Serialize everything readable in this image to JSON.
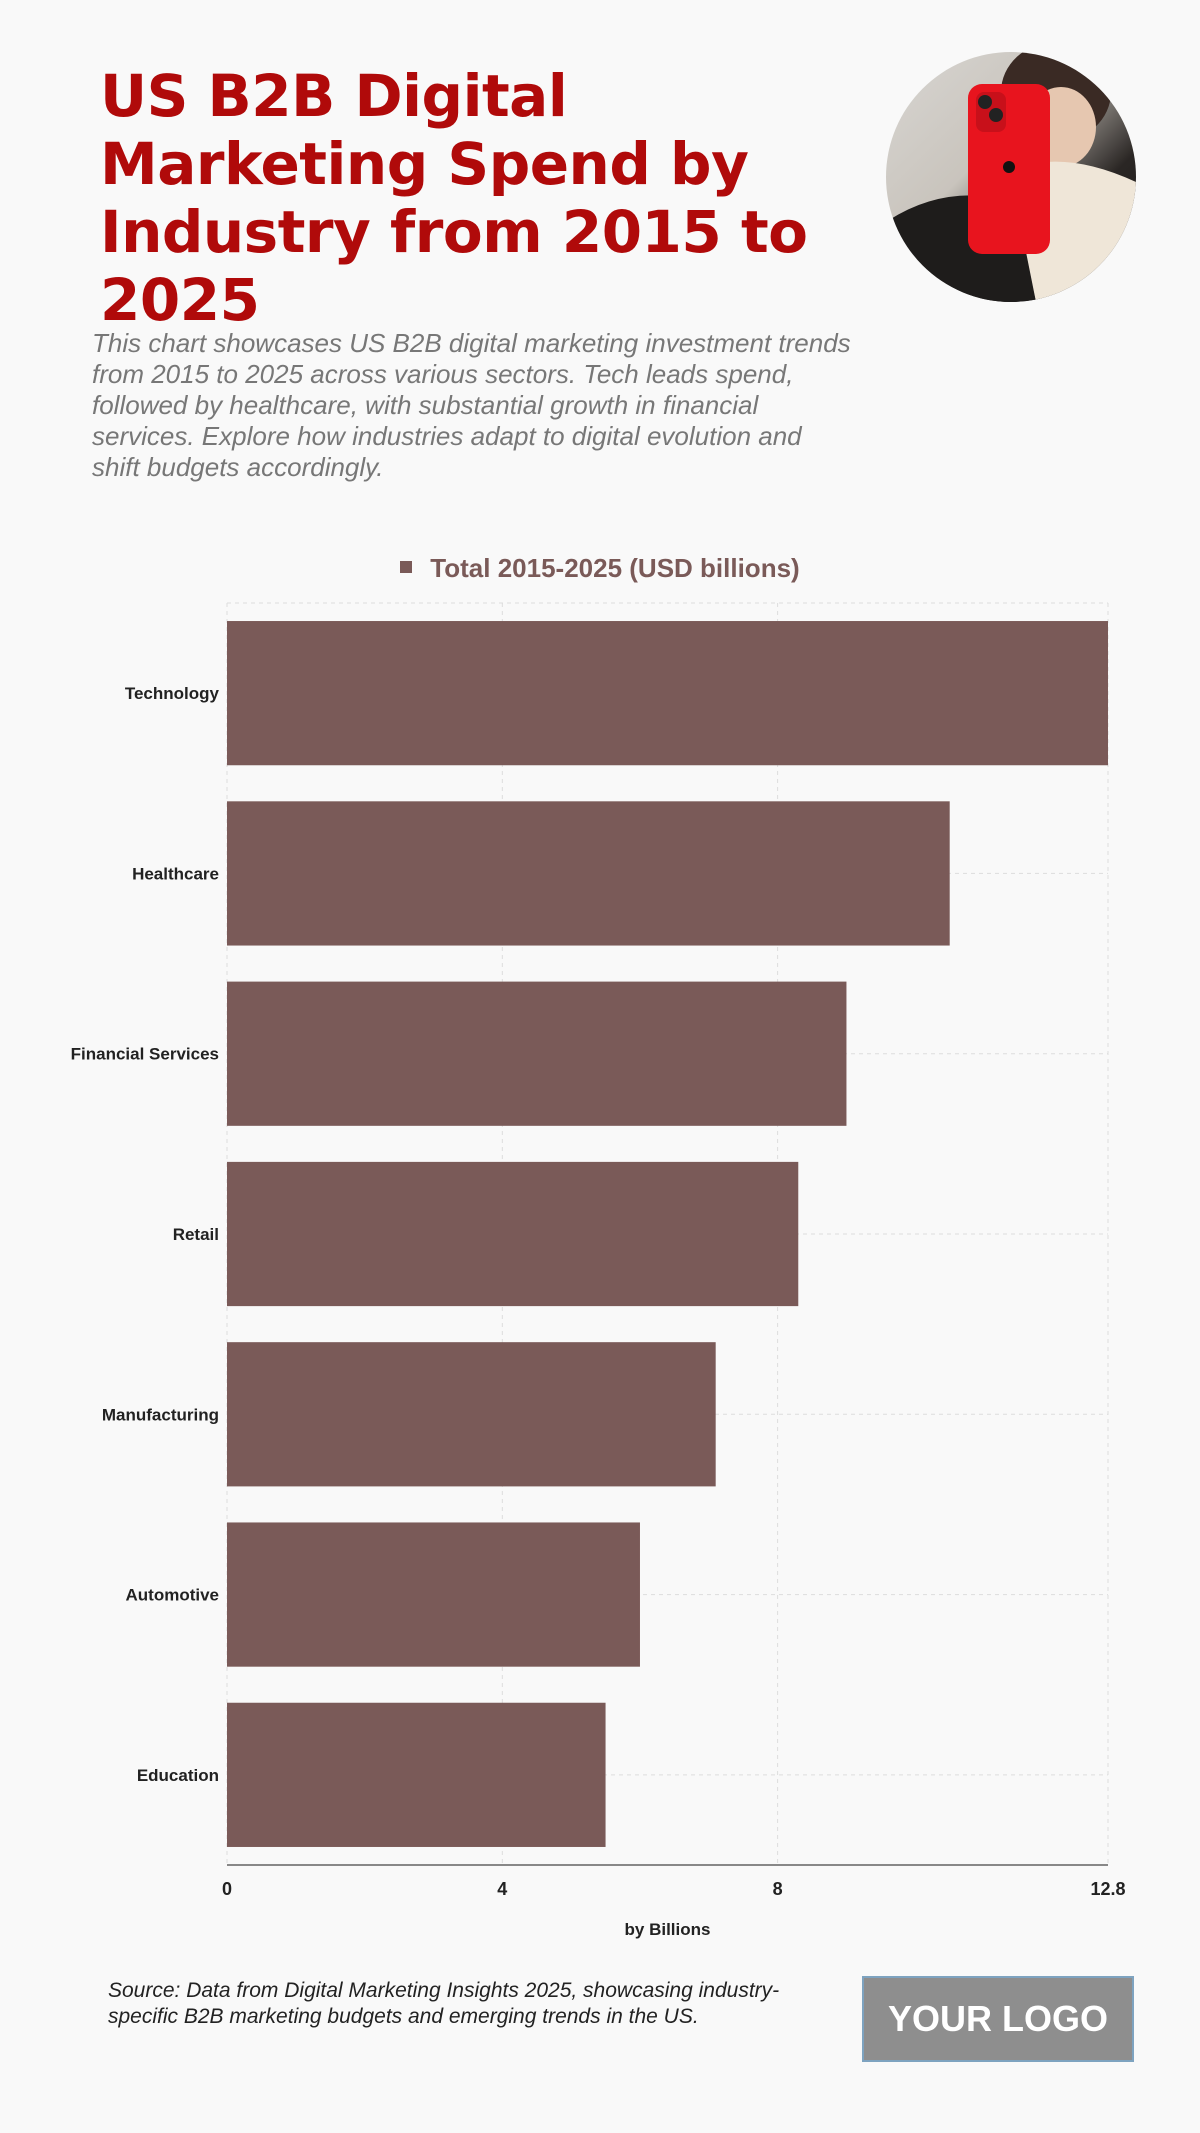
{
  "title": "US B2B Digital Marketing Spend by Industry from 2015 to 2025",
  "description": "This chart showcases US B2B digital marketing investment trends from 2015 to 2025 across various sectors. Tech leads spend, followed by healthcare, with substantial growth in financial services. Explore how industries adapt to digital evolution and shift budgets accordingly.",
  "source": "Source: Data from Digital Marketing Insights 2025, showcasing industry-specific B2B marketing budgets and emerging trends in the US.",
  "logo_text": "YOUR LOGO",
  "colors": {
    "title": "#b00a0a",
    "bar": "#7a5a58"
  },
  "chart_data": {
    "type": "bar",
    "orientation": "horizontal",
    "categories": [
      "Technology",
      "Healthcare",
      "Financial Services",
      "Retail",
      "Manufacturing",
      "Automotive",
      "Education"
    ],
    "series": [
      {
        "name": "Total 2015-2025 (USD billions)",
        "values": [
          12.8,
          10.5,
          9.0,
          8.3,
          7.1,
          6.0,
          5.5
        ]
      }
    ],
    "xlabel": "by Billions",
    "ylabel": "",
    "xlim": [
      0,
      12.8
    ],
    "xticks": [
      "0",
      "4",
      "8",
      "12.8"
    ],
    "grid": true,
    "legend": "top-center"
  }
}
